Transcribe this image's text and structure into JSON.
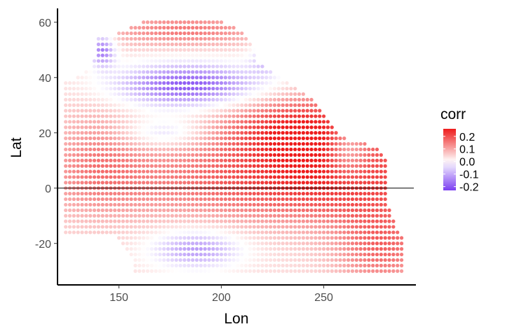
{
  "chart_data": {
    "type": "scatter",
    "title": "",
    "xlabel": "Lon",
    "ylabel": "Lat",
    "xlim": [
      120,
      295
    ],
    "ylim": [
      -35,
      65
    ],
    "x_ticks": [
      150,
      200,
      250
    ],
    "x_tick_labels": [
      "150",
      "200",
      "250"
    ],
    "y_ticks": [
      -20,
      0,
      20,
      40,
      60
    ],
    "y_tick_labels": [
      "-20",
      "0",
      "20",
      "40",
      "60"
    ],
    "grid": false,
    "reference_line": {
      "axis": "y",
      "value": 0
    },
    "color_scale": {
      "name": "corr",
      "min": -0.23,
      "max": 0.26,
      "low_color": "#7b3ff2",
      "mid_color": "#ffffff",
      "high_color": "#ee1c1c",
      "breaks": [
        0.2,
        0.1,
        0.0,
        -0.1,
        -0.2
      ],
      "break_labels": [
        "0.2",
        "0.1",
        "0.0",
        "-0.1",
        "-0.2"
      ]
    },
    "legend_position": "right",
    "grid_spacing_deg": 2,
    "grid_origin": {
      "lon": 124,
      "lat": -30
    },
    "rows": [
      {
        "lat": -30,
        "lon_min": 158,
        "lon_max": 288
      },
      {
        "lat": -28,
        "lon_min": 158,
        "lon_max": 288
      },
      {
        "lat": -26,
        "lon_min": 158,
        "lon_max": 288
      },
      {
        "lat": -24,
        "lon_min": 156,
        "lon_max": 288
      },
      {
        "lat": -22,
        "lon_min": 154,
        "lon_max": 288
      },
      {
        "lat": -20,
        "lon_min": 152,
        "lon_max": 288
      },
      {
        "lat": -18,
        "lon_min": 150,
        "lon_max": 288
      },
      {
        "lat": -16,
        "lon_min": 124,
        "lon_max": 286
      },
      {
        "lat": -14,
        "lon_min": 124,
        "lon_max": 284
      },
      {
        "lat": -12,
        "lon_min": 124,
        "lon_max": 284
      },
      {
        "lat": -10,
        "lon_min": 124,
        "lon_max": 282
      },
      {
        "lat": -8,
        "lon_min": 124,
        "lon_max": 282
      },
      {
        "lat": -6,
        "lon_min": 124,
        "lon_max": 280
      },
      {
        "lat": -4,
        "lon_min": 124,
        "lon_max": 280
      },
      {
        "lat": -2,
        "lon_min": 124,
        "lon_max": 280
      },
      {
        "lat": 0,
        "lon_min": 124,
        "lon_max": 280
      },
      {
        "lat": 2,
        "lon_min": 124,
        "lon_max": 280
      },
      {
        "lat": 4,
        "lon_min": 124,
        "lon_max": 280
      },
      {
        "lat": 6,
        "lon_min": 124,
        "lon_max": 280
      },
      {
        "lat": 8,
        "lon_min": 124,
        "lon_max": 280
      },
      {
        "lat": 10,
        "lon_min": 124,
        "lon_max": 280
      },
      {
        "lat": 12,
        "lon_min": 124,
        "lon_max": 278
      },
      {
        "lat": 14,
        "lon_min": 124,
        "lon_max": 276
      },
      {
        "lat": 16,
        "lon_min": 124,
        "lon_max": 270
      },
      {
        "lat": 18,
        "lon_min": 124,
        "lon_max": 260
      },
      {
        "lat": 20,
        "lon_min": 124,
        "lon_max": 256
      },
      {
        "lat": 22,
        "lon_min": 124,
        "lon_max": 254
      },
      {
        "lat": 24,
        "lon_min": 124,
        "lon_max": 252
      },
      {
        "lat": 26,
        "lon_min": 124,
        "lon_max": 250
      },
      {
        "lat": 28,
        "lon_min": 124,
        "lon_max": 248
      },
      {
        "lat": 30,
        "lon_min": 124,
        "lon_max": 246
      },
      {
        "lat": 32,
        "lon_min": 124,
        "lon_max": 244
      },
      {
        "lat": 34,
        "lon_min": 124,
        "lon_max": 240
      },
      {
        "lat": 36,
        "lon_min": 124,
        "lon_max": 236
      },
      {
        "lat": 38,
        "lon_min": 124,
        "lon_max": 232
      },
      {
        "lat": 40,
        "lon_min": 130,
        "lon_max": 228
      },
      {
        "lat": 42,
        "lon_min": 134,
        "lon_max": 224
      },
      {
        "lat": 44,
        "lon_min": 138,
        "lon_max": 220
      },
      {
        "lat": 46,
        "lon_min": 138,
        "lon_max": 216
      },
      {
        "lat": 48,
        "lon_min": 140,
        "lon_max": 216
      },
      {
        "lat": 50,
        "lon_min": 140,
        "lon_max": 216
      },
      {
        "lat": 52,
        "lon_min": 140,
        "lon_max": 214
      },
      {
        "lat": 54,
        "lon_min": 140,
        "lon_max": 212
      },
      {
        "lat": 56,
        "lon_min": 150,
        "lon_max": 210
      },
      {
        "lat": 58,
        "lon_min": 156,
        "lon_max": 206
      },
      {
        "lat": 60,
        "lon_min": 162,
        "lon_max": 200
      }
    ]
  }
}
